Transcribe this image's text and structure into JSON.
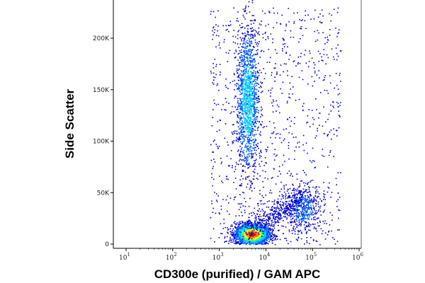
{
  "chart_data": {
    "type": "scatter",
    "title": "",
    "xlabel": "CD300e (purified) / GAM APC",
    "ylabel": "Side Scatter",
    "x_scale": "log",
    "xlim": [
      10,
      1000000
    ],
    "ylim": [
      0,
      240000
    ],
    "x_ticks": [
      {
        "value": 10,
        "base": "10",
        "exp": "1"
      },
      {
        "value": 100,
        "base": "10",
        "exp": "2"
      },
      {
        "value": 1000,
        "base": "10",
        "exp": "3"
      },
      {
        "value": 10000,
        "base": "10",
        "exp": "4"
      },
      {
        "value": 100000,
        "base": "10",
        "exp": "5"
      },
      {
        "value": 1000000,
        "base": "10",
        "exp": "6"
      }
    ],
    "y_ticks": [
      {
        "value": 0,
        "label": "0"
      },
      {
        "value": 50000,
        "label": "50K"
      },
      {
        "value": 100000,
        "label": "100K"
      },
      {
        "value": 150000,
        "label": "150K"
      },
      {
        "value": 200000,
        "label": "200K"
      }
    ],
    "grid": false,
    "legend": "none",
    "density_colormap": [
      "#0000d0",
      "#0060ff",
      "#00c8ff",
      "#40ff80",
      "#ffff00",
      "#ff8000",
      "#ff0000"
    ],
    "populations": [
      {
        "x_center": 5000,
        "y_center": 10000,
        "x_spread_log": 0.18,
        "y_spread": 5000,
        "relative_density": 1.0
      },
      {
        "x_center": 4000,
        "y_center": 140000,
        "x_spread_log": 0.12,
        "y_spread": 35000,
        "relative_density": 0.55
      },
      {
        "x_center": 60000,
        "y_center": 35000,
        "x_spread_log": 0.22,
        "y_spread": 12000,
        "relative_density": 0.2
      }
    ]
  }
}
